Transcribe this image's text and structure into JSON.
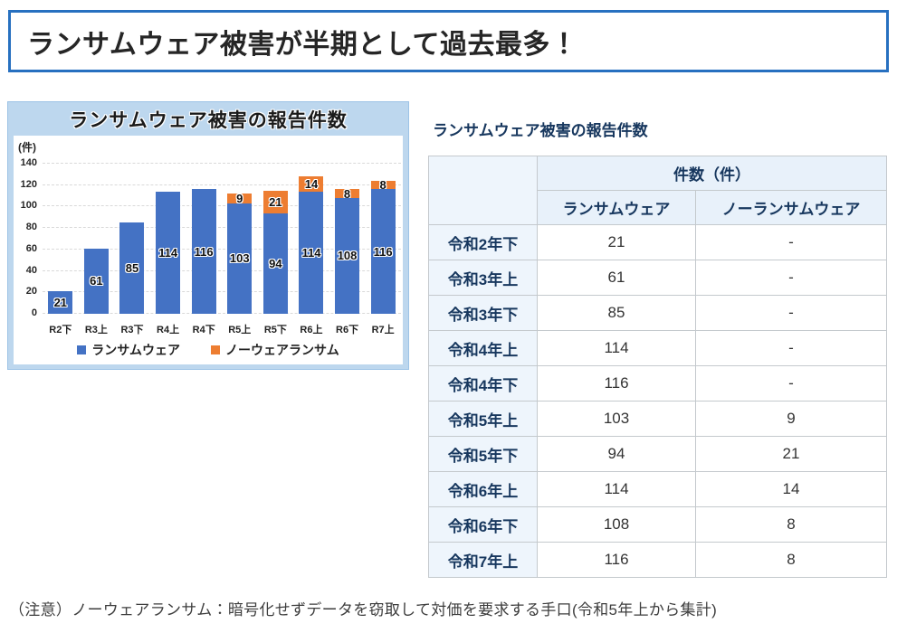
{
  "banner": {
    "title": "ランサムウェア被害が半期として過去最多！"
  },
  "chart_data": {
    "type": "bar",
    "stacked": true,
    "title": "ランサムウェア被害の報告件数",
    "unit_label": "(件)",
    "categories": [
      "R2下",
      "R3上",
      "R3下",
      "R4上",
      "R4下",
      "R5上",
      "R5下",
      "R6上",
      "R6下",
      "R7上"
    ],
    "series": [
      {
        "name": "ランサムウェア",
        "color": "#4472c4",
        "values": [
          21,
          61,
          85,
          114,
          116,
          103,
          94,
          114,
          108,
          116
        ]
      },
      {
        "name": "ノーウェアランサム",
        "color": "#ed7d31",
        "values": [
          null,
          null,
          null,
          null,
          null,
          9,
          21,
          14,
          8,
          8
        ]
      }
    ],
    "ylim": [
      0,
      140
    ],
    "ytick_step": 20,
    "grid": true,
    "legend_position": "bottom"
  },
  "table": {
    "title": "ランサムウェア被害の報告件数",
    "group_header": "件数（件）",
    "columns": [
      "ランサムウェア",
      "ノーランサムウェア"
    ],
    "rows": [
      {
        "label": "令和2年下",
        "values": [
          "21",
          "-"
        ]
      },
      {
        "label": "令和3年上",
        "values": [
          "61",
          "-"
        ]
      },
      {
        "label": "令和3年下",
        "values": [
          "85",
          "-"
        ]
      },
      {
        "label": "令和4年上",
        "values": [
          "114",
          "-"
        ]
      },
      {
        "label": "令和4年下",
        "values": [
          "116",
          "-"
        ]
      },
      {
        "label": "令和5年上",
        "values": [
          "103",
          "9"
        ]
      },
      {
        "label": "令和5年下",
        "values": [
          "94",
          "21"
        ]
      },
      {
        "label": "令和6年上",
        "values": [
          "114",
          "14"
        ]
      },
      {
        "label": "令和6年下",
        "values": [
          "108",
          "8"
        ]
      },
      {
        "label": "令和7年上",
        "values": [
          "116",
          "8"
        ]
      }
    ]
  },
  "note": {
    "text": "（注意）ノーウェアランサム：暗号化せずデータを窃取して対価を要求する手口(令和5年上から集計)"
  },
  "colors": {
    "banner_border": "#2770c0",
    "chart_frame_bg": "#bdd7ee",
    "bar_blue": "#4472c4",
    "bar_orange": "#ed7d31",
    "heading_text": "#17375e",
    "table_header_bg": "#e8f1fa",
    "table_rowhead_bg": "#eef5fc"
  }
}
